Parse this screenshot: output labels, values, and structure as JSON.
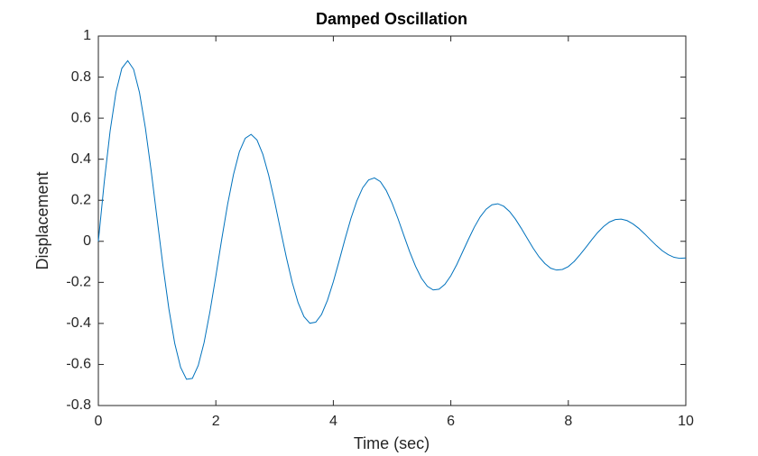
{
  "chart_data": {
    "type": "line",
    "title": "Damped Oscillation",
    "xlabel": "Time (sec)",
    "ylabel": "Displacement",
    "x": [
      0,
      0.1,
      0.2,
      0.3,
      0.4,
      0.5,
      0.6,
      0.7,
      0.8,
      0.9,
      1,
      1.1,
      1.2,
      1.3,
      1.4,
      1.5,
      1.6,
      1.7,
      1.8,
      1.9,
      2,
      2.1,
      2.2,
      2.3,
      2.4,
      2.5,
      2.6,
      2.7,
      2.8,
      2.9,
      3,
      3.1,
      3.2,
      3.3,
      3.4,
      3.5,
      3.6,
      3.7,
      3.8,
      3.9,
      4,
      4.1,
      4.2,
      4.3,
      4.4,
      4.5,
      4.6,
      4.7,
      4.8,
      4.9,
      5,
      5.1,
      5.2,
      5.3,
      5.4,
      5.5,
      5.6,
      5.7,
      5.8,
      5.9,
      6,
      6.1,
      6.2,
      6.3,
      6.4,
      6.5,
      6.6,
      6.7,
      6.8,
      6.9,
      7,
      7.1,
      7.2,
      7.3,
      7.4,
      7.5,
      7.6,
      7.7,
      7.8,
      7.9,
      8,
      8.1,
      8.2,
      8.3,
      8.4,
      8.5,
      8.6,
      8.7,
      8.8,
      8.9,
      9,
      9.1,
      9.2,
      9.3,
      9.4,
      9.5,
      9.6,
      9.7,
      9.8,
      9.9,
      10
    ],
    "series": [
      {
        "color": "#0072bd",
        "values": [
          0,
          0.288,
          0.537,
          0.727,
          0.843,
          0.88,
          0.838,
          0.725,
          0.553,
          0.341,
          0.11,
          -0.12,
          -0.328,
          -0.497,
          -0.614,
          -0.672,
          -0.668,
          -0.605,
          -0.493,
          -0.342,
          -0.169,
          0.01,
          0.18,
          0.325,
          0.436,
          0.502,
          0.521,
          0.494,
          0.424,
          0.321,
          0.195,
          0.057,
          -0.078,
          -0.2,
          -0.299,
          -0.367,
          -0.399,
          -0.394,
          -0.356,
          -0.287,
          -0.197,
          -0.094,
          0.012,
          0.112,
          0.197,
          0.261,
          0.299,
          0.309,
          0.291,
          0.248,
          0.186,
          0.111,
          0.029,
          -0.051,
          -0.122,
          -0.18,
          -0.219,
          -0.237,
          -0.233,
          -0.209,
          -0.168,
          -0.114,
          -0.052,
          0.01,
          0.069,
          0.119,
          0.156,
          0.178,
          0.183,
          0.171,
          0.145,
          0.108,
          0.063,
          0.015,
          -0.033,
          -0.075,
          -0.108,
          -0.131,
          -0.14,
          -0.137,
          -0.123,
          -0.098,
          -0.065,
          -0.029,
          0.008,
          0.043,
          0.072,
          0.094,
          0.106,
          0.108,
          0.101,
          0.085,
          0.063,
          0.036,
          0.007,
          -0.021,
          -0.046,
          -0.065,
          -0.078,
          -0.083,
          -0.081
        ]
      }
    ],
    "xlim": [
      0,
      10
    ],
    "xticks": [
      0,
      2,
      4,
      6,
      8,
      10
    ],
    "ylim": [
      -0.8,
      1
    ],
    "yticks": [
      -0.8,
      -0.6,
      -0.4,
      -0.2,
      0,
      0.2,
      0.4,
      0.6,
      0.8,
      1
    ],
    "grid": false
  }
}
